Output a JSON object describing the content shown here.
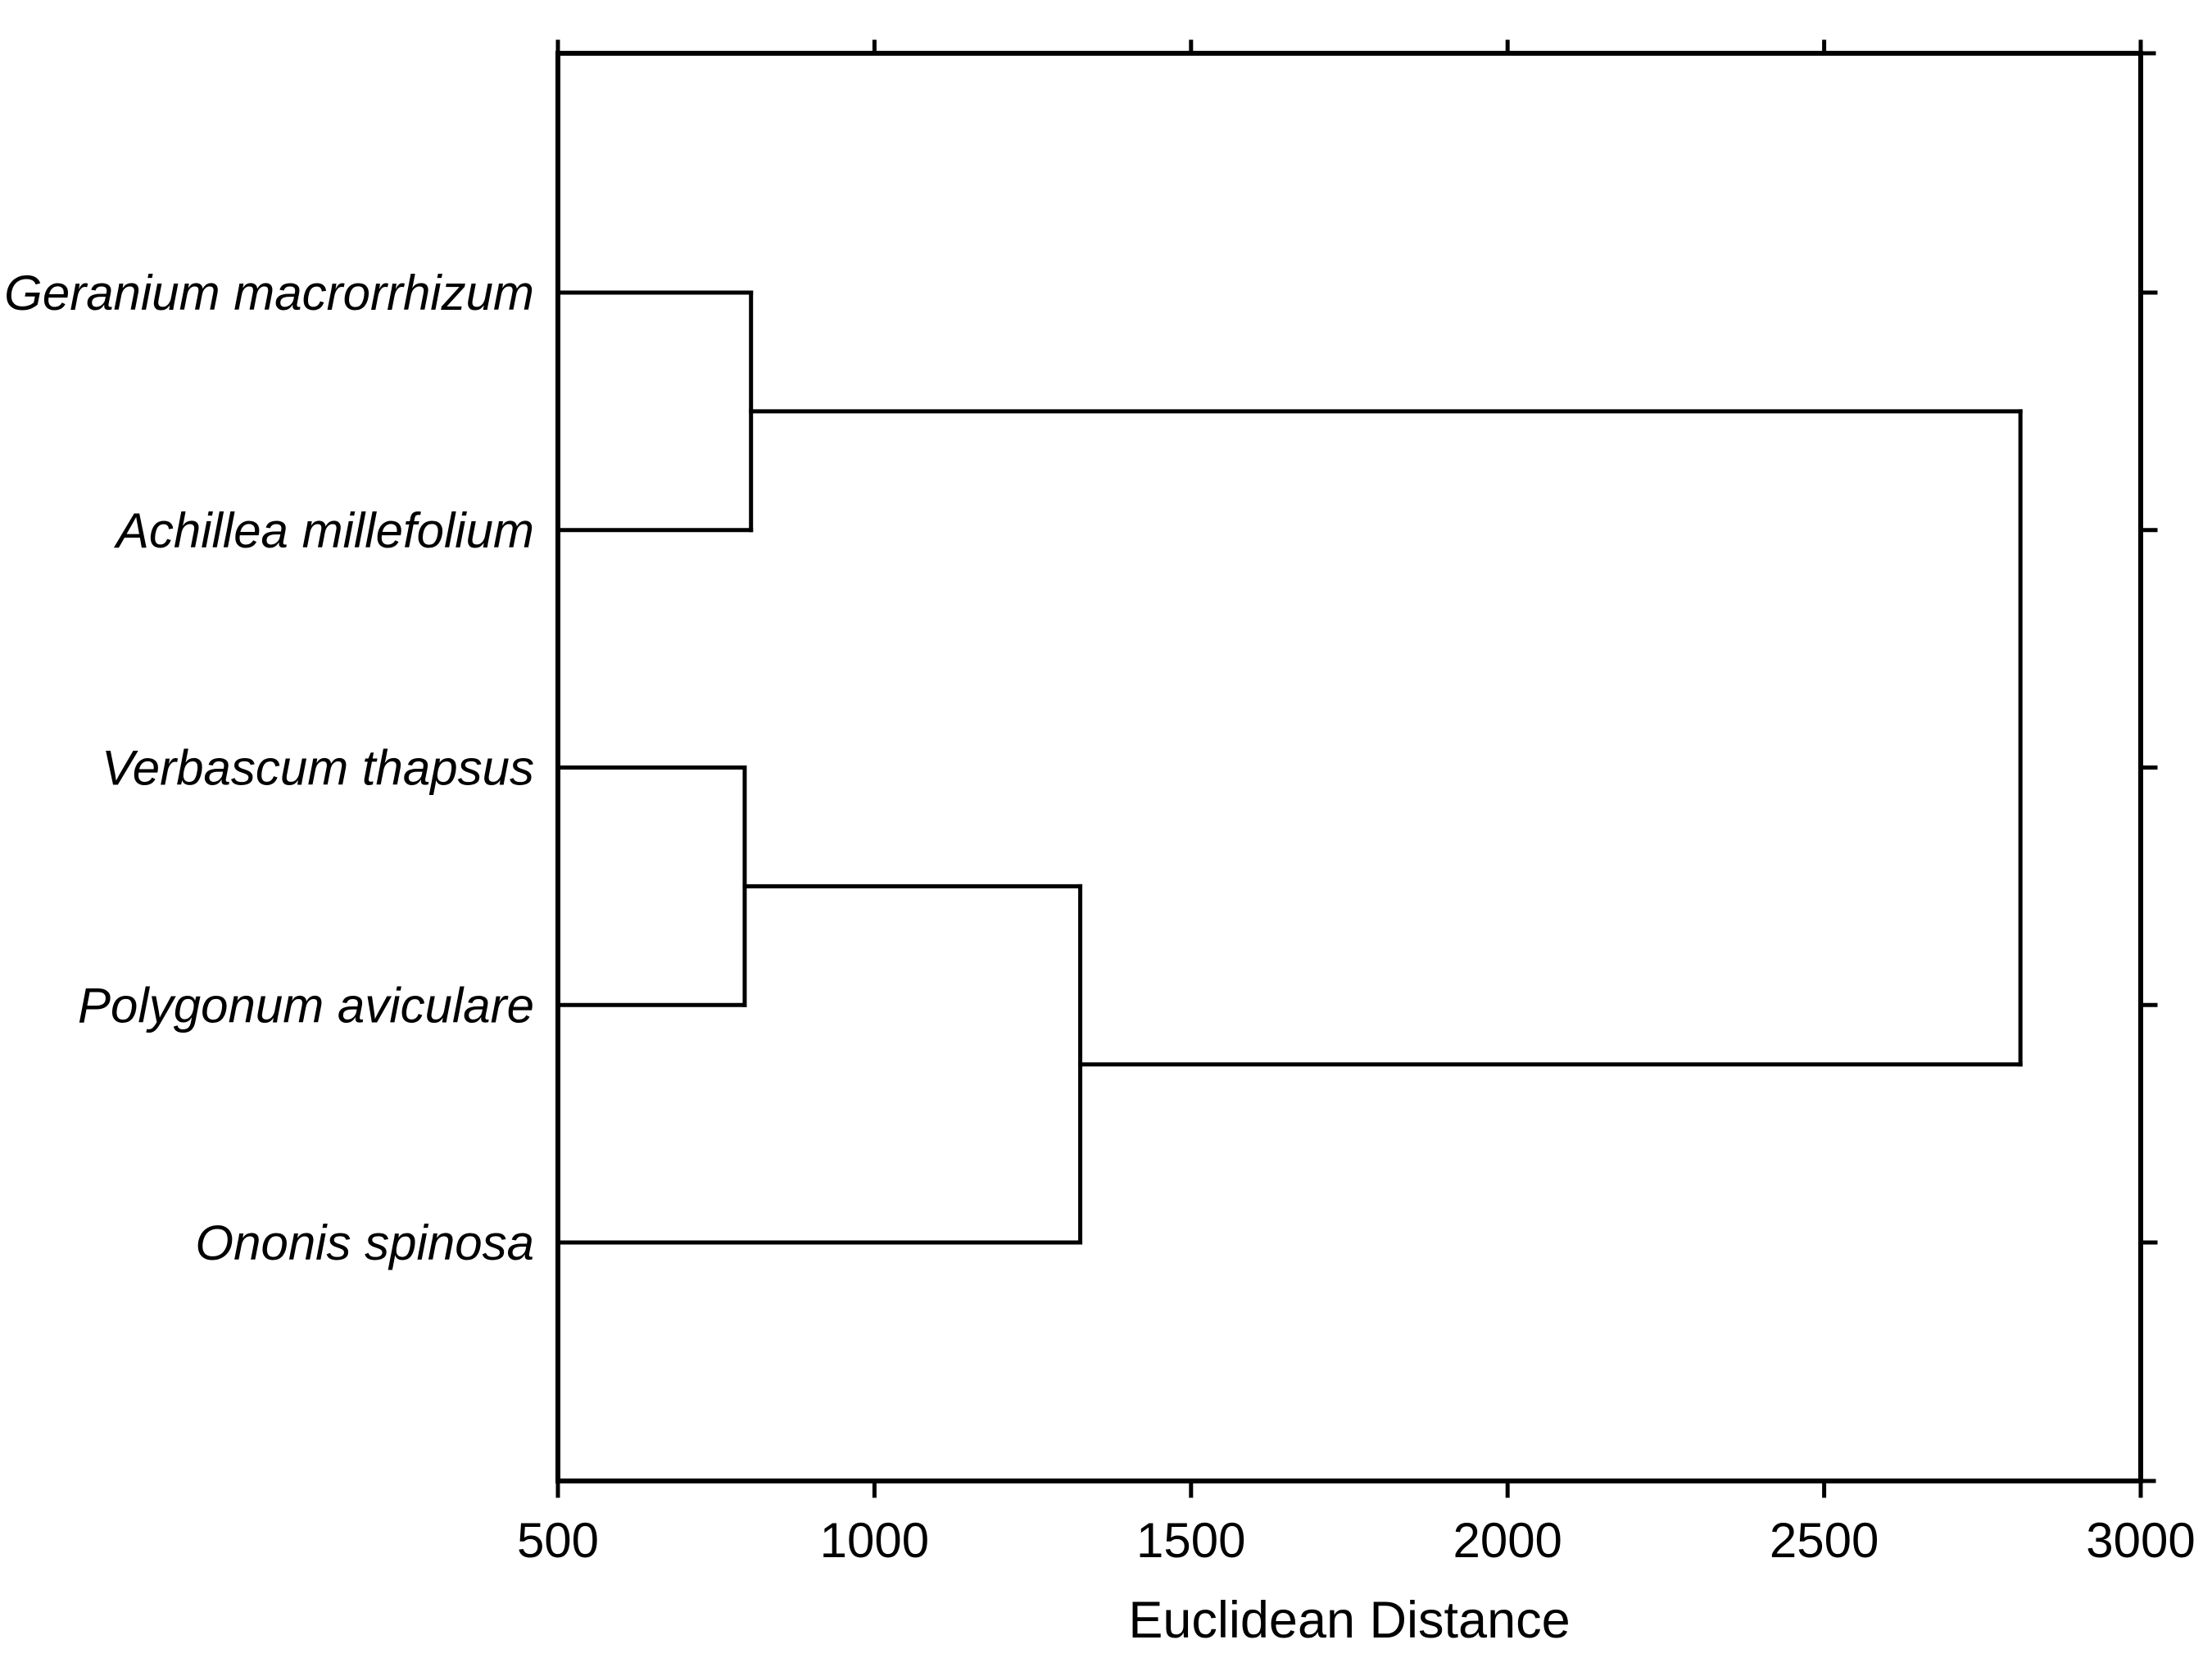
{
  "chart_data": {
    "type": "dendrogram",
    "orientation": "horizontal",
    "xlabel": "Euclidean Distance",
    "xlim": [
      500,
      3000
    ],
    "x_ticks": [
      500,
      1000,
      1500,
      2000,
      2500,
      3000
    ],
    "grid": false,
    "frame": "box",
    "legend": "none",
    "line_color": "#000000",
    "background_color": "#ffffff",
    "leaves": [
      "Geranium macrorrhizum",
      "Achillea millefolium",
      "Verbascum thapsus",
      "Polygonum aviculare",
      "Ononis spinosa"
    ],
    "merges": [
      {
        "children": [
          "leaf:0",
          "leaf:1"
        ],
        "distance": 805
      },
      {
        "children": [
          "leaf:2",
          "leaf:3"
        ],
        "distance": 795
      },
      {
        "children": [
          "node:1",
          "leaf:4"
        ],
        "distance": 1325
      },
      {
        "children": [
          "node:0",
          "node:2"
        ],
        "distance": 2810
      }
    ]
  }
}
